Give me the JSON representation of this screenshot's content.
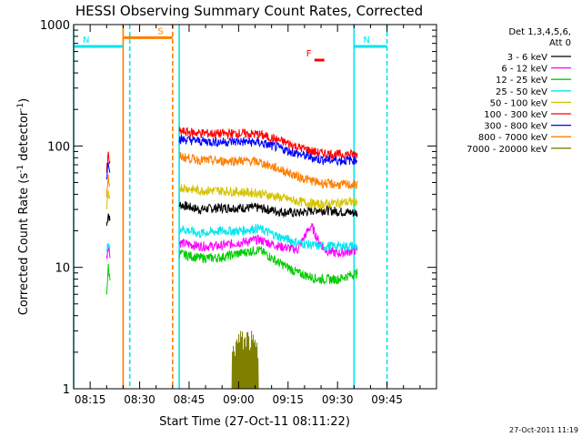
{
  "chart_data": {
    "type": "line",
    "title": "HESSI Observing Summary Count Rates, Corrected",
    "xlabel": "Start Time (27-Oct-11 08:11:22)",
    "ylabel_main": "Corrected Count Rate (s",
    "ylabel_sup1": "-1",
    "ylabel_mid": " detector",
    "ylabel_sup2": "-1",
    "ylabel_end": ")",
    "yscale": "log",
    "ylim": [
      1,
      1000
    ],
    "xlim_min": [
      490,
      600
    ],
    "x_unit": "minutes after 00:00 UT on 27-Oct-11",
    "x_ticks": [
      {
        "t": 495,
        "label": "08:15"
      },
      {
        "t": 510,
        "label": "08:30"
      },
      {
        "t": 525,
        "label": "08:45"
      },
      {
        "t": 540,
        "label": "09:00"
      },
      {
        "t": 555,
        "label": "09:15"
      },
      {
        "t": 570,
        "label": "09:30"
      },
      {
        "t": 585,
        "label": "09:45"
      }
    ],
    "y_ticks": [
      {
        "v": 1,
        "label": "1"
      },
      {
        "v": 10,
        "label": "10"
      },
      {
        "v": 100,
        "label": "100"
      },
      {
        "v": 1000,
        "label": "1000"
      }
    ],
    "legend_placement": "right",
    "legend_header": [
      "Det 1,3,4,5,6,",
      "Att 0"
    ],
    "series": [
      {
        "name": "3 - 6 keV",
        "color": "#000000",
        "segments": [
          {
            "x": [
              500,
              500.5,
              501
            ],
            "y": [
              22,
              28,
              24
            ]
          },
          {
            "x": [
              522,
              528,
              534,
              540,
              546,
              552,
              558,
              564,
              570,
              576
            ],
            "y": [
              33,
              30,
              31,
              31,
              31,
              29,
              28,
              30,
              29,
              28
            ]
          }
        ]
      },
      {
        "name": "6 - 12 keV",
        "color": "#ff00ff",
        "segments": [
          {
            "x": [
              500,
              500.5,
              501
            ],
            "y": [
              12,
              15,
              13
            ]
          },
          {
            "x": [
              522,
              528,
              534,
              540,
              546,
              552,
              558,
              562,
              564,
              566,
              570,
              576
            ],
            "y": [
              16,
              15,
              15,
              16,
              17,
              15,
              14,
              22,
              17,
              14,
              13,
              14
            ]
          }
        ]
      },
      {
        "name": "12 - 25 keV",
        "color": "#00cc00",
        "segments": [
          {
            "x": [
              500,
              500.5,
              501
            ],
            "y": [
              6,
              10,
              8
            ]
          },
          {
            "x": [
              522,
              528,
              534,
              540,
              546,
              552,
              558,
              564,
              570,
              576
            ],
            "y": [
              13,
              12,
              12,
              13,
              14,
              11,
              9,
              8,
              8,
              9
            ]
          }
        ]
      },
      {
        "name": "25 - 50 keV",
        "color": "#00e5ee",
        "segments": [
          {
            "x": [
              500,
              500.5,
              501
            ],
            "y": [
              13,
              16,
              14
            ]
          },
          {
            "x": [
              522,
              528,
              534,
              540,
              546,
              552,
              558,
              564,
              570,
              576
            ],
            "y": [
              21,
              19,
              20,
              20,
              21,
              18,
              16,
              15,
              15,
              15
            ]
          }
        ]
      },
      {
        "name": "50 - 100 keV",
        "color": "#d4c300",
        "segments": [
          {
            "x": [
              500,
              500.5,
              501
            ],
            "y": [
              30,
              40,
              34
            ]
          },
          {
            "x": [
              522,
              528,
              534,
              540,
              546,
              552,
              558,
              564,
              570,
              576
            ],
            "y": [
              46,
              43,
              43,
              42,
              41,
              38,
              35,
              33,
              34,
              35
            ]
          }
        ]
      },
      {
        "name": "100 - 300 keV",
        "color": "#ff0000",
        "segments": [
          {
            "x": [
              500,
              500.5,
              501
            ],
            "y": [
              60,
              85,
              70
            ]
          },
          {
            "x": [
              522,
              528,
              534,
              540,
              546,
              552,
              558,
              564,
              570,
              576
            ],
            "y": [
              132,
              128,
              126,
              127,
              125,
              112,
              98,
              88,
              85,
              86
            ]
          }
        ]
      },
      {
        "name": "300 - 800 keV",
        "color": "#0000ff",
        "segments": [
          {
            "x": [
              500,
              500.5,
              501
            ],
            "y": [
              55,
              75,
              65
            ]
          },
          {
            "x": [
              522,
              528,
              534,
              540,
              546,
              552,
              558,
              564,
              570,
              576
            ],
            "y": [
              114,
              110,
              108,
              109,
              107,
              97,
              86,
              78,
              76,
              77
            ]
          }
        ]
      },
      {
        "name": "800 - 7000 keV",
        "color": "#ff7f00",
        "segments": [
          {
            "x": [
              500,
              500.5,
              501
            ],
            "y": [
              40,
              55,
              45
            ]
          },
          {
            "x": [
              522,
              528,
              534,
              540,
              546,
              552,
              558,
              564,
              570,
              576
            ],
            "y": [
              82,
              77,
              75,
              76,
              74,
              65,
              56,
              50,
              48,
              48
            ]
          }
        ]
      },
      {
        "name": "7000 - 20000 keV",
        "color": "#808000",
        "segments": [
          {
            "x": [
              538,
              540,
              542,
              544,
              546
            ],
            "y": [
              2,
              2.5,
              2.6,
              2.5,
              2
            ]
          }
        ]
      }
    ],
    "markers": [
      {
        "label": "S",
        "color": "#ff7f00",
        "x_start": 505,
        "x_end": 520,
        "y": 780
      },
      {
        "label": "N",
        "color": "#00e5ee",
        "x_start": 490,
        "x_end": 505,
        "y": 660
      },
      {
        "label": "N",
        "color": "#00e5ee",
        "x_start": 575,
        "x_end": 585,
        "y": 660
      },
      {
        "label": "F",
        "color": "#ff0000",
        "x_start": 563,
        "x_end": 566,
        "y": 510
      }
    ],
    "vertical_lines": [
      {
        "x": 490,
        "color": "#00e5ee",
        "style": "solid"
      },
      {
        "x": 505,
        "color": "#ff7f00",
        "style": "solid"
      },
      {
        "x": 507,
        "color": "#00e5ee",
        "style": "dashed"
      },
      {
        "x": 520,
        "color": "#ff7f00",
        "style": "dashed"
      },
      {
        "x": 522,
        "color": "#00e5ee",
        "style": "solid"
      },
      {
        "x": 575,
        "color": "#00e5ee",
        "style": "solid"
      },
      {
        "x": 585,
        "color": "#00e5ee",
        "style": "dashed"
      }
    ],
    "footer": "27-Oct-2011 11:19"
  }
}
